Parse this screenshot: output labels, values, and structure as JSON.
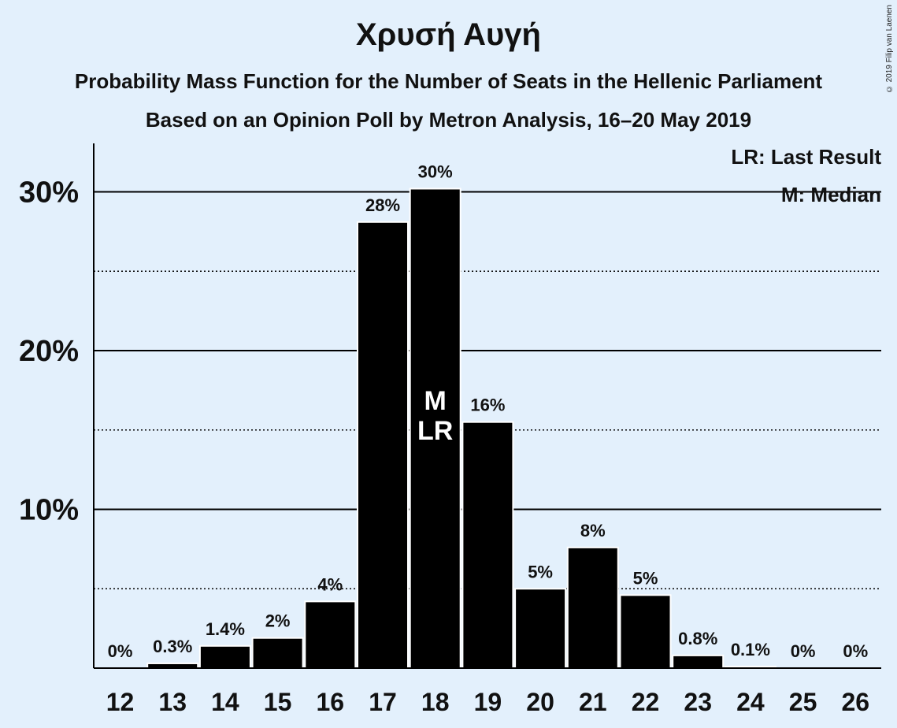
{
  "chart_data": {
    "type": "bar",
    "title": "Χρυσή Αυγή",
    "subtitle": "Probability Mass Function for the Number of Seats in the Hellenic Parliament",
    "subtitle2": "Based on an Opinion Poll by Metron Analysis, 16–20 May 2019",
    "copyright": "© 2019 Filip van Laenen",
    "categories": [
      "12",
      "13",
      "14",
      "15",
      "16",
      "17",
      "18",
      "19",
      "20",
      "21",
      "22",
      "23",
      "24",
      "25",
      "26"
    ],
    "values": [
      0,
      0.3,
      1.4,
      1.9,
      4.2,
      28.1,
      30.2,
      15.5,
      5.0,
      7.6,
      4.6,
      0.8,
      0.1,
      0,
      0
    ],
    "data_labels": [
      "0%",
      "0.3%",
      "1.4%",
      "2%",
      "4%",
      "28%",
      "30%",
      "16%",
      "5%",
      "8%",
      "5%",
      "0.8%",
      "0.1%",
      "0%",
      "0%"
    ],
    "ylim": [
      0,
      33
    ],
    "y_ticks": [
      {
        "value": 10,
        "label": "10%"
      },
      {
        "value": 20,
        "label": "20%"
      },
      {
        "value": 30,
        "label": "30%"
      }
    ],
    "dotted_lines": [
      5,
      15,
      25
    ],
    "median_category": "18",
    "last_result_category": "18",
    "median_marker": "M",
    "last_result_marker": "LR",
    "legend": {
      "last_result": "LR: Last Result",
      "median": "M: Median"
    },
    "colors": {
      "background": "#e3f0fc",
      "bar": "#000000",
      "bar_border": "#ffffff",
      "marker_text": "#ffffff"
    }
  }
}
